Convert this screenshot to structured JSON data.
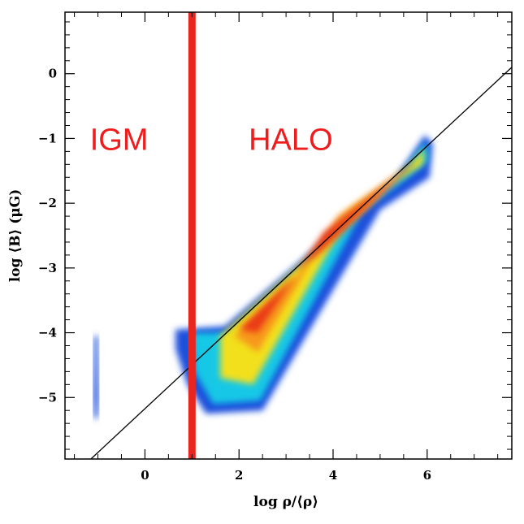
{
  "chart_data": {
    "type": "heatmap",
    "title": "",
    "xlabel": "log ρ/⟨ρ⟩",
    "ylabel": "log ⟨B⟩ (μG)",
    "xlim": [
      -1.7,
      7.8
    ],
    "ylim": [
      -5.95,
      0.95
    ],
    "x_ticks": [
      0,
      2,
      4,
      6
    ],
    "x_tick_labels": [
      "0",
      "2",
      "4",
      "6"
    ],
    "y_ticks": [
      0,
      -1,
      -2,
      -3,
      -4,
      -5
    ],
    "y_tick_labels": [
      "0",
      "−1",
      "−2",
      "−3",
      "−4",
      "−5"
    ],
    "fit_line": {
      "points": [
        [
          -1.15,
          -5.95
        ],
        [
          7.8,
          0.1
        ]
      ]
    },
    "threshold_line": {
      "x": 1.0,
      "color": "#e8261f"
    },
    "regions": [
      {
        "label": "IGM",
        "x": -0.55,
        "y": -1.0
      },
      {
        "label": "HALO",
        "x": 3.1,
        "y": -1.0
      }
    ],
    "distributions": [
      {
        "name": "igm-blob",
        "outline": [
          [
            -1.08,
            -4.05
          ],
          [
            -1.0,
            -4.05
          ],
          [
            -0.98,
            -5.0
          ],
          [
            -1.0,
            -5.32
          ],
          [
            -1.08,
            -5.32
          ],
          [
            -1.1,
            -5.0
          ]
        ],
        "color": "#1a4fdc"
      },
      {
        "name": "halo-outer",
        "outline": [
          [
            0.65,
            -3.95
          ],
          [
            1.7,
            -3.9
          ],
          [
            5.3,
            -1.65
          ],
          [
            5.95,
            -0.95
          ],
          [
            6.12,
            -1.08
          ],
          [
            6.05,
            -1.6
          ],
          [
            5.0,
            -2.1
          ],
          [
            2.5,
            -5.2
          ],
          [
            1.3,
            -5.25
          ],
          [
            0.9,
            -4.8
          ],
          [
            0.65,
            -4.25
          ]
        ],
        "color": "#1a4fdc"
      },
      {
        "name": "halo-cyan",
        "outline": [
          [
            1.0,
            -4.0
          ],
          [
            1.8,
            -4.0
          ],
          [
            5.3,
            -1.68
          ],
          [
            5.98,
            -1.05
          ],
          [
            6.02,
            -1.35
          ],
          [
            5.5,
            -1.65
          ],
          [
            4.6,
            -2.15
          ],
          [
            2.45,
            -5.05
          ],
          [
            1.45,
            -5.1
          ],
          [
            1.05,
            -4.6
          ]
        ],
        "color": "#12c8e6"
      },
      {
        "name": "halo-yellow",
        "outline": [
          [
            1.6,
            -4.05
          ],
          [
            5.6,
            -1.45
          ],
          [
            5.95,
            -1.15
          ],
          [
            5.9,
            -1.4
          ],
          [
            4.4,
            -2.1
          ],
          [
            2.3,
            -4.8
          ],
          [
            1.6,
            -4.7
          ]
        ],
        "color": "#f2e01e"
      },
      {
        "name": "halo-orange",
        "outline": [
          [
            1.9,
            -4.05
          ],
          [
            5.55,
            -1.5
          ],
          [
            5.85,
            -1.3
          ],
          [
            4.1,
            -2.2
          ],
          [
            2.4,
            -4.3
          ]
        ],
        "color": "#f7981a"
      },
      {
        "name": "halo-red",
        "outline": [
          [
            2.0,
            -3.95
          ],
          [
            5.5,
            -1.5
          ],
          [
            5.75,
            -1.38
          ],
          [
            3.8,
            -2.45
          ],
          [
            2.4,
            -4.0
          ]
        ],
        "color": "#ea3a14"
      }
    ]
  }
}
